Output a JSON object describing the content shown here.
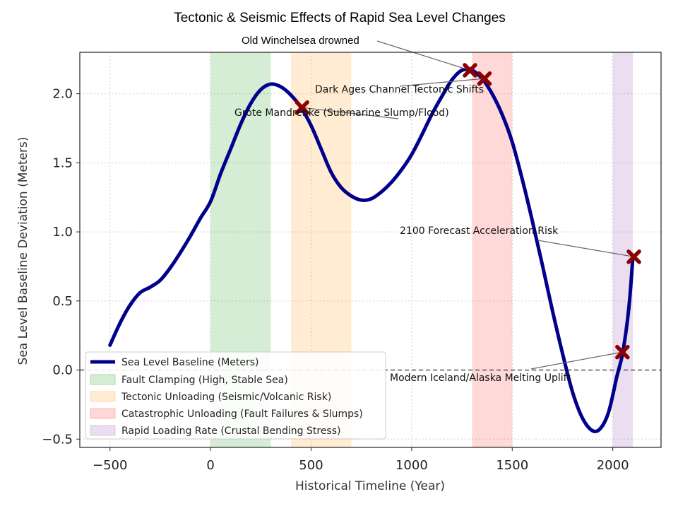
{
  "chart_data": {
    "type": "line",
    "title": "Tectonic & Seismic Effects of Rapid Sea Level Changes",
    "xlabel": "Historical Timeline (Year)",
    "ylabel": "Sea Level Baseline Deviation (Meters)",
    "xlim": [
      -650,
      2240
    ],
    "ylim": [
      -0.56,
      2.3
    ],
    "x_ticks": [
      -500,
      0,
      500,
      1000,
      1500,
      2000
    ],
    "x_tick_labels": [
      "−500",
      "0",
      "500",
      "1000",
      "1500",
      "2000"
    ],
    "y_ticks": [
      -0.5,
      0.0,
      0.5,
      1.0,
      1.5,
      2.0
    ],
    "y_tick_labels": [
      "−0.5",
      "0.0",
      "0.5",
      "1.0",
      "1.5",
      "2.0"
    ],
    "grid": true,
    "baseline_y": 0.0,
    "series": [
      {
        "name": "Sea Level Baseline (Meters)",
        "color": "#00008b",
        "x": [
          -500,
          -450,
          -400,
          -350,
          -300,
          -250,
          -200,
          -150,
          -100,
          -50,
          0,
          50,
          100,
          150,
          200,
          250,
          300,
          350,
          400,
          450,
          500,
          550,
          600,
          650,
          700,
          750,
          800,
          850,
          900,
          950,
          1000,
          1050,
          1100,
          1150,
          1200,
          1250,
          1300,
          1350,
          1400,
          1450,
          1500,
          1550,
          1600,
          1650,
          1700,
          1750,
          1800,
          1850,
          1900,
          1940,
          1980,
          2020,
          2050,
          2080,
          2100
        ],
        "y": [
          0.18,
          0.34,
          0.47,
          0.56,
          0.6,
          0.65,
          0.74,
          0.85,
          0.97,
          1.1,
          1.22,
          1.42,
          1.6,
          1.78,
          1.93,
          2.03,
          2.07,
          2.05,
          1.99,
          1.9,
          1.77,
          1.6,
          1.43,
          1.32,
          1.26,
          1.23,
          1.24,
          1.29,
          1.36,
          1.45,
          1.56,
          1.7,
          1.85,
          1.98,
          2.1,
          2.17,
          2.17,
          2.11,
          2.0,
          1.85,
          1.65,
          1.38,
          1.08,
          0.76,
          0.43,
          0.12,
          -0.16,
          -0.35,
          -0.44,
          -0.42,
          -0.3,
          -0.05,
          0.13,
          0.45,
          0.82
        ]
      }
    ],
    "bands": [
      {
        "label": "Fault Clamping (High, Stable Sea)",
        "from": 0,
        "to": 300,
        "color": "#2ca02c"
      },
      {
        "label": "Tectonic Unloading (Seismic/Volcanic Risk)",
        "from": 400,
        "to": 700,
        "color": "#ff9f1c"
      },
      {
        "label": "Catastrophic Unloading (Fault Failures & Slumps)",
        "from": 1300,
        "to": 1500,
        "color": "#ff3b3b"
      },
      {
        "label": "Rapid Loading Rate (Crustal Bending Stress)",
        "from": 2000,
        "to": 2100,
        "color": "#9b59b6"
      }
    ],
    "markers": [
      {
        "x": 455,
        "y": 1.9
      },
      {
        "x": 1290,
        "y": 2.17
      },
      {
        "x": 1362,
        "y": 2.11
      },
      {
        "x": 2048,
        "y": 0.13
      },
      {
        "x": 2105,
        "y": 0.82
      }
    ],
    "marker_color": "#8b0000",
    "annotations": [
      {
        "text": "Old Winchelsea drowned",
        "x": 1290,
        "y": 2.17
      },
      {
        "text": "Dark Ages Channel Tectonic Shifts",
        "x": 1362,
        "y": 2.11
      },
      {
        "text": "Grote Mandrenke (Submarine Slump/Flood)",
        "x": 455,
        "y": 1.9
      },
      {
        "text": "2100 Forecast Acceleration Risk",
        "x": 2105,
        "y": 0.82
      },
      {
        "text": "Modern Iceland/Alaska Melting Uplift",
        "x": 2048,
        "y": 0.13
      }
    ],
    "legend_position": "lower-left"
  }
}
